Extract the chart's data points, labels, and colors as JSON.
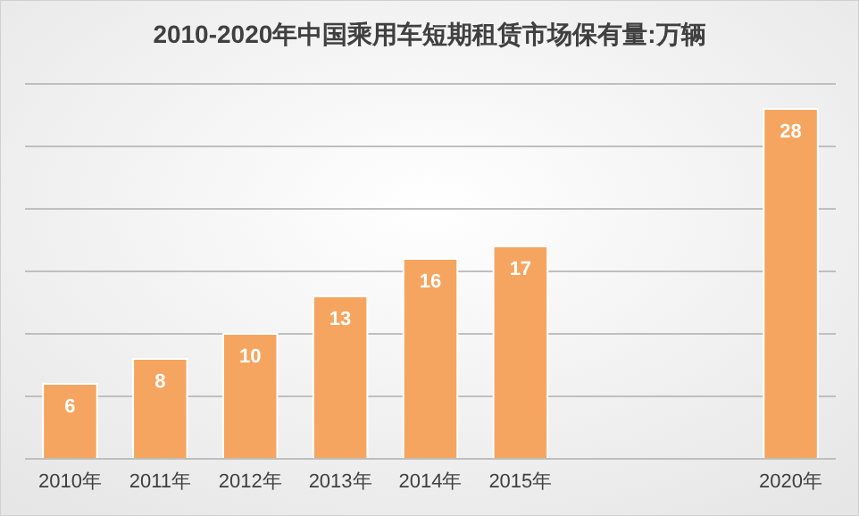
{
  "chart_data": {
    "type": "bar",
    "title": "2010-2020年中国乘用车短期租赁市场保有量:万辆",
    "categories": [
      "2010年",
      "2011年",
      "2012年",
      "2013年",
      "2014年",
      "2015年",
      null,
      null,
      "2020年"
    ],
    "values": [
      6,
      8,
      10,
      13,
      16,
      17,
      null,
      null,
      28
    ],
    "color": "#f5a55f",
    "ylim": [
      0,
      30
    ],
    "yticks": [
      {
        "value": 0,
        "label": null
      },
      {
        "value": 5,
        "label": null
      },
      {
        "value": 10,
        "label": null
      },
      {
        "value": 15,
        "label": null
      },
      {
        "value": 20,
        "label": null
      },
      {
        "value": 25,
        "label": null
      },
      {
        "value": 30,
        "label": null
      }
    ],
    "grid": "y",
    "data_labels": true
  }
}
